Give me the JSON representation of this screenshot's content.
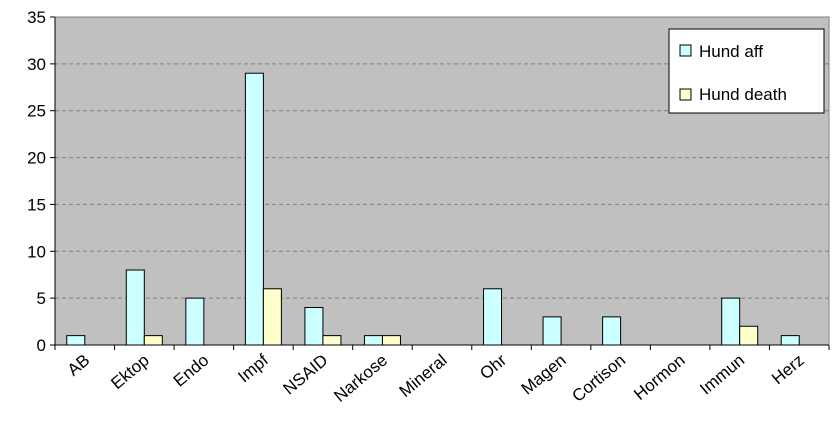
{
  "chart_data": {
    "type": "bar",
    "title": "",
    "xlabel": "",
    "ylabel": "",
    "ylim": [
      0,
      35
    ],
    "yticks": [
      0,
      5,
      10,
      15,
      20,
      25,
      30,
      35
    ],
    "grid": true,
    "legend_position": "top-right",
    "categories": [
      "AB",
      "Ektop",
      "Endo",
      "Impf",
      "NSAID",
      "Narkose",
      "Mineral",
      "Ohr",
      "Magen",
      "Cortison",
      "Hormon",
      "Immun",
      "Herz"
    ],
    "series": [
      {
        "name": "Hund aff",
        "color": "#ccffff",
        "values": [
          1,
          8,
          5,
          29,
          4,
          1,
          0,
          6,
          3,
          3,
          0,
          5,
          1
        ]
      },
      {
        "name": "Hund death",
        "color": "#ffffcc",
        "values": [
          0,
          1,
          0,
          6,
          1,
          1,
          0,
          0,
          0,
          0,
          0,
          2,
          0
        ]
      }
    ],
    "plot_background": "#c0c0c0"
  }
}
